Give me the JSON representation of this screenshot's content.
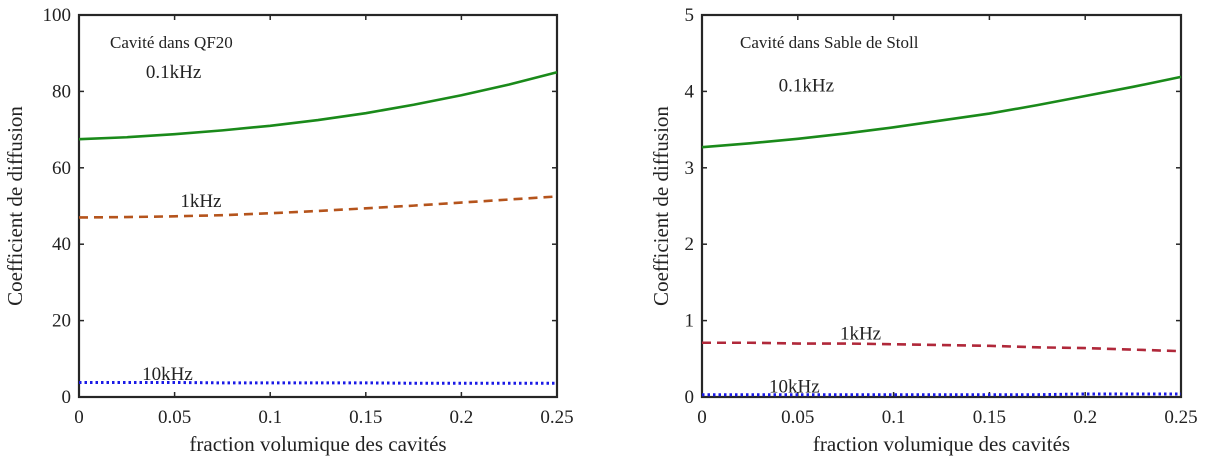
{
  "chart_data": [
    {
      "type": "line",
      "annotation": "Cavité dans QF20",
      "xlabel": "fraction volumique des cavités",
      "ylabel": "Coefficient de diffusion",
      "xlim": [
        0,
        0.25
      ],
      "ylim": [
        0,
        100
      ],
      "xticks": [
        0,
        0.05,
        0.1,
        0.15,
        0.2,
        0.25
      ],
      "xtick_labels": [
        "0",
        "0.05",
        "0.1",
        "0.15",
        "0.2",
        "0.25"
      ],
      "yticks": [
        0,
        20,
        40,
        60,
        80,
        100
      ],
      "ytick_labels": [
        "0",
        "20",
        "40",
        "60",
        "80",
        "100"
      ],
      "grid": false,
      "x": [
        0,
        0.025,
        0.05,
        0.075,
        0.1,
        0.125,
        0.15,
        0.175,
        0.2,
        0.225,
        0.25
      ],
      "series": [
        {
          "label": "0.1kHz",
          "color": "#1a8a1a",
          "style": "solid",
          "values": [
            67.5,
            68.0,
            68.8,
            69.8,
            71.0,
            72.5,
            74.3,
            76.5,
            79.0,
            81.8,
            85.0
          ]
        },
        {
          "label": "1kHz",
          "color": "#b5541c",
          "style": "dashed",
          "values": [
            47.0,
            47.1,
            47.3,
            47.6,
            48.1,
            48.7,
            49.4,
            50.1,
            50.9,
            51.7,
            52.5
          ]
        },
        {
          "label": "10kHz",
          "color": "#1a1ae6",
          "style": "dotted",
          "values": [
            3.8,
            3.8,
            3.8,
            3.7,
            3.7,
            3.7,
            3.7,
            3.6,
            3.6,
            3.6,
            3.6
          ]
        }
      ]
    },
    {
      "type": "line",
      "annotation": "Cavité dans Sable de Stoll",
      "xlabel": "fraction volumique des cavités",
      "ylabel": "Coefficient de diffusion",
      "xlim": [
        0,
        0.25
      ],
      "ylim": [
        0,
        5
      ],
      "xticks": [
        0,
        0.05,
        0.1,
        0.15,
        0.2,
        0.25
      ],
      "xtick_labels": [
        "0",
        "0.05",
        "0.1",
        "0.15",
        "0.2",
        "0.25"
      ],
      "yticks": [
        0,
        1,
        2,
        3,
        4,
        5
      ],
      "ytick_labels": [
        "0",
        "1",
        "2",
        "3",
        "4",
        "5"
      ],
      "grid": false,
      "x": [
        0,
        0.025,
        0.05,
        0.075,
        0.1,
        0.125,
        0.15,
        0.175,
        0.2,
        0.225,
        0.25
      ],
      "series": [
        {
          "label": "0.1kHz",
          "color": "#1a8a1a",
          "style": "solid",
          "values": [
            3.27,
            3.32,
            3.38,
            3.45,
            3.53,
            3.62,
            3.71,
            3.82,
            3.94,
            4.06,
            4.19
          ]
        },
        {
          "label": "1kHz",
          "color": "#b0283a",
          "style": "dashed",
          "values": [
            0.71,
            0.71,
            0.7,
            0.7,
            0.69,
            0.68,
            0.67,
            0.65,
            0.64,
            0.62,
            0.6
          ]
        },
        {
          "label": "10kHz",
          "color": "#1a1ae6",
          "style": "dotted",
          "values": [
            0.03,
            0.03,
            0.03,
            0.03,
            0.03,
            0.03,
            0.03,
            0.03,
            0.04,
            0.04,
            0.04
          ]
        }
      ]
    }
  ]
}
